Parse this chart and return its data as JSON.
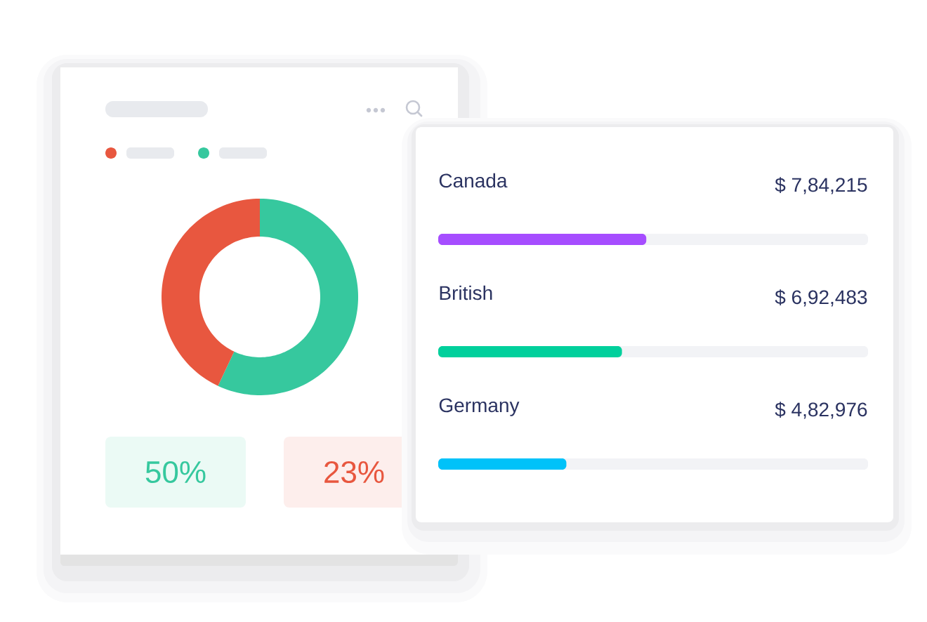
{
  "chart_data": [
    {
      "type": "donut",
      "categories": [
        null,
        null
      ],
      "values": [
        57,
        43
      ],
      "colors": [
        "#36c89e",
        "#e8573f"
      ],
      "annotations": [
        "50%",
        "23%"
      ]
    },
    {
      "type": "bar",
      "orientation": "horizontal",
      "categories": [
        "Canada",
        "British",
        "Germany"
      ],
      "values": [
        784215,
        692483,
        482976
      ],
      "colors": [
        "#a64dff",
        "#00d09c",
        "#00c2f9"
      ],
      "value_labels": [
        "$ 7,84,215",
        "$ 6,92,483",
        "$ 4,82,976"
      ],
      "xlim": [
        0,
        1620000
      ]
    }
  ]
}
